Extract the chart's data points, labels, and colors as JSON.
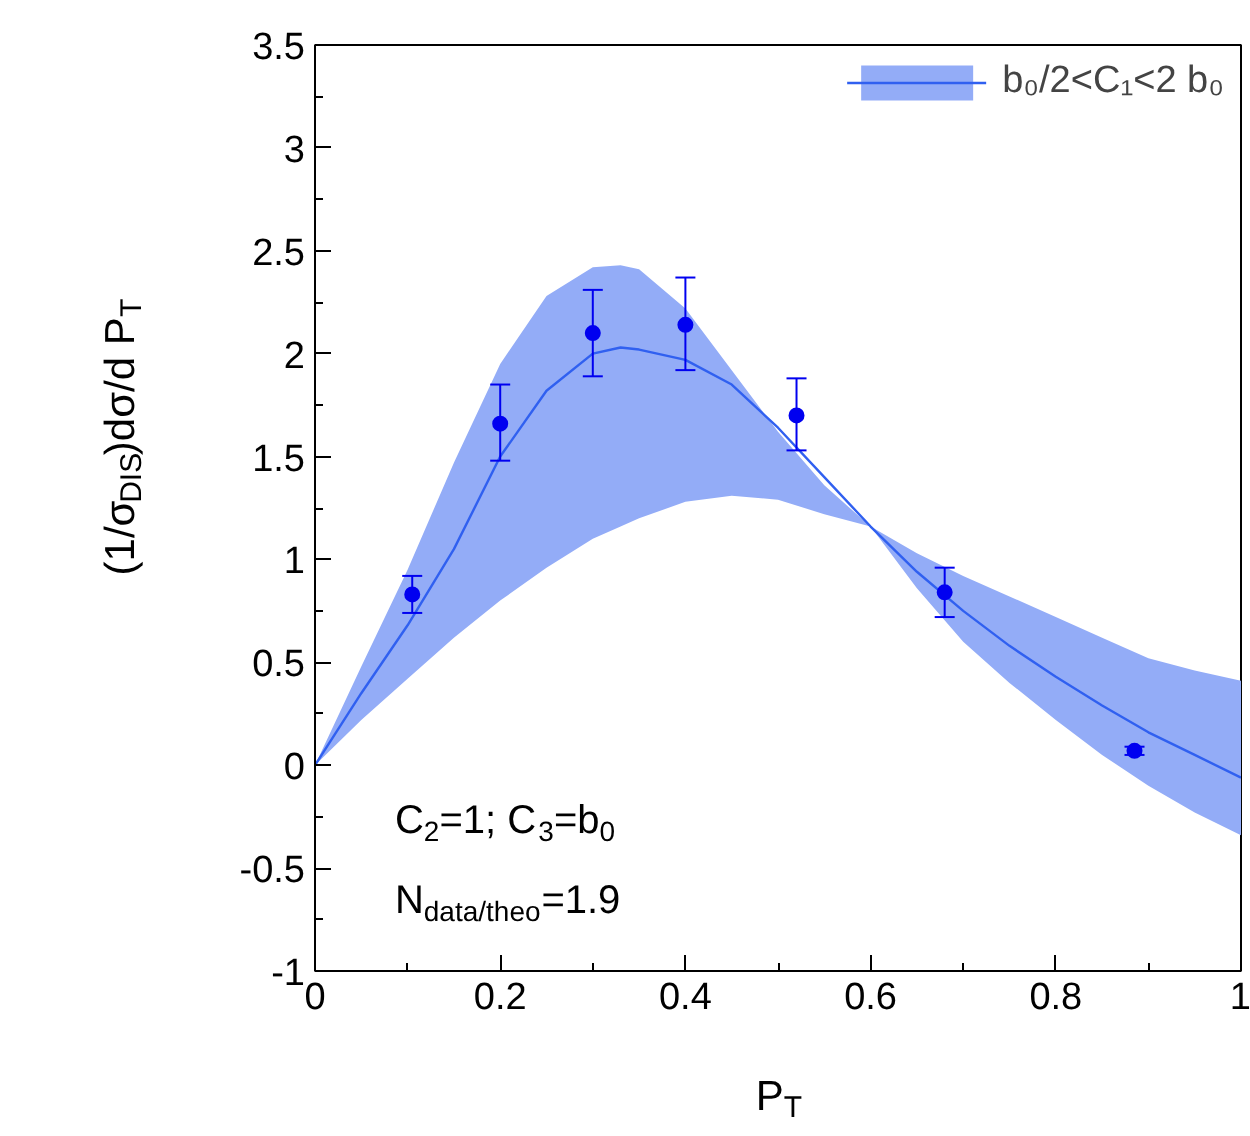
{
  "chart_data": {
    "type": "line",
    "xlabel": "P$_{T}$",
    "ylabel": "(1/σ$_{DIS}$)dσ/d P$_{T}$",
    "xlim": [
      0,
      1
    ],
    "ylim": [
      -1,
      3.5
    ],
    "xticks": [
      0,
      0.2,
      0.4,
      0.6,
      0.8,
      1
    ],
    "yticks": [
      -1,
      -0.5,
      0,
      0.5,
      1,
      1.5,
      2,
      2.5,
      3,
      3.5
    ],
    "grid": false,
    "legend": "top right",
    "series": [
      {
        "name": "b₀/2<C₁<2 b₀",
        "color": "#3060f0",
        "marker": "none",
        "x": [
          0,
          0.05,
          0.1,
          0.15,
          0.2,
          0.25,
          0.3,
          0.33,
          0.35,
          0.4,
          0.45,
          0.5,
          0.55,
          0.6,
          0.65,
          0.7,
          0.75,
          0.8,
          0.85,
          0.9,
          0.95,
          1
        ],
        "values": [
          0,
          0.35,
          0.68,
          1.05,
          1.5,
          1.82,
          2.0,
          2.03,
          2.02,
          1.97,
          1.85,
          1.64,
          1.4,
          1.16,
          0.94,
          0.75,
          0.58,
          0.43,
          0.29,
          0.16,
          0.05,
          -0.06
        ],
        "upper": [
          0,
          0.48,
          0.95,
          1.47,
          1.95,
          2.28,
          2.42,
          2.43,
          2.41,
          2.22,
          1.92,
          1.62,
          1.36,
          1.16,
          1.03,
          0.92,
          0.82,
          0.72,
          0.62,
          0.52,
          0.46,
          0.41
        ],
        "lower": [
          0,
          0.22,
          0.42,
          0.62,
          0.8,
          0.96,
          1.1,
          1.16,
          1.2,
          1.28,
          1.31,
          1.29,
          1.22,
          1.16,
          0.86,
          0.6,
          0.4,
          0.22,
          0.05,
          -0.1,
          -0.23,
          -0.34
        ]
      },
      {
        "type": "scatter",
        "color": "#0000f0",
        "marker": "circle",
        "x": [
          0.105,
          0.2,
          0.3,
          0.4,
          0.52,
          0.68,
          0.885
        ],
        "values": [
          0.83,
          1.66,
          2.1,
          2.14,
          1.7,
          0.84,
          0.07
        ],
        "errors": [
          [
            0.74,
            0.92
          ],
          [
            1.48,
            1.85
          ],
          [
            1.89,
            2.31
          ],
          [
            1.92,
            2.37
          ],
          [
            1.53,
            1.88
          ],
          [
            0.72,
            0.96
          ],
          [
            0.05,
            0.09
          ]
        ]
      }
    ],
    "annotations": [
      "C$_{2}$=1; C$_{3}$=b$_{0}$",
      "N$_{data/theo}$=1.9"
    ]
  }
}
